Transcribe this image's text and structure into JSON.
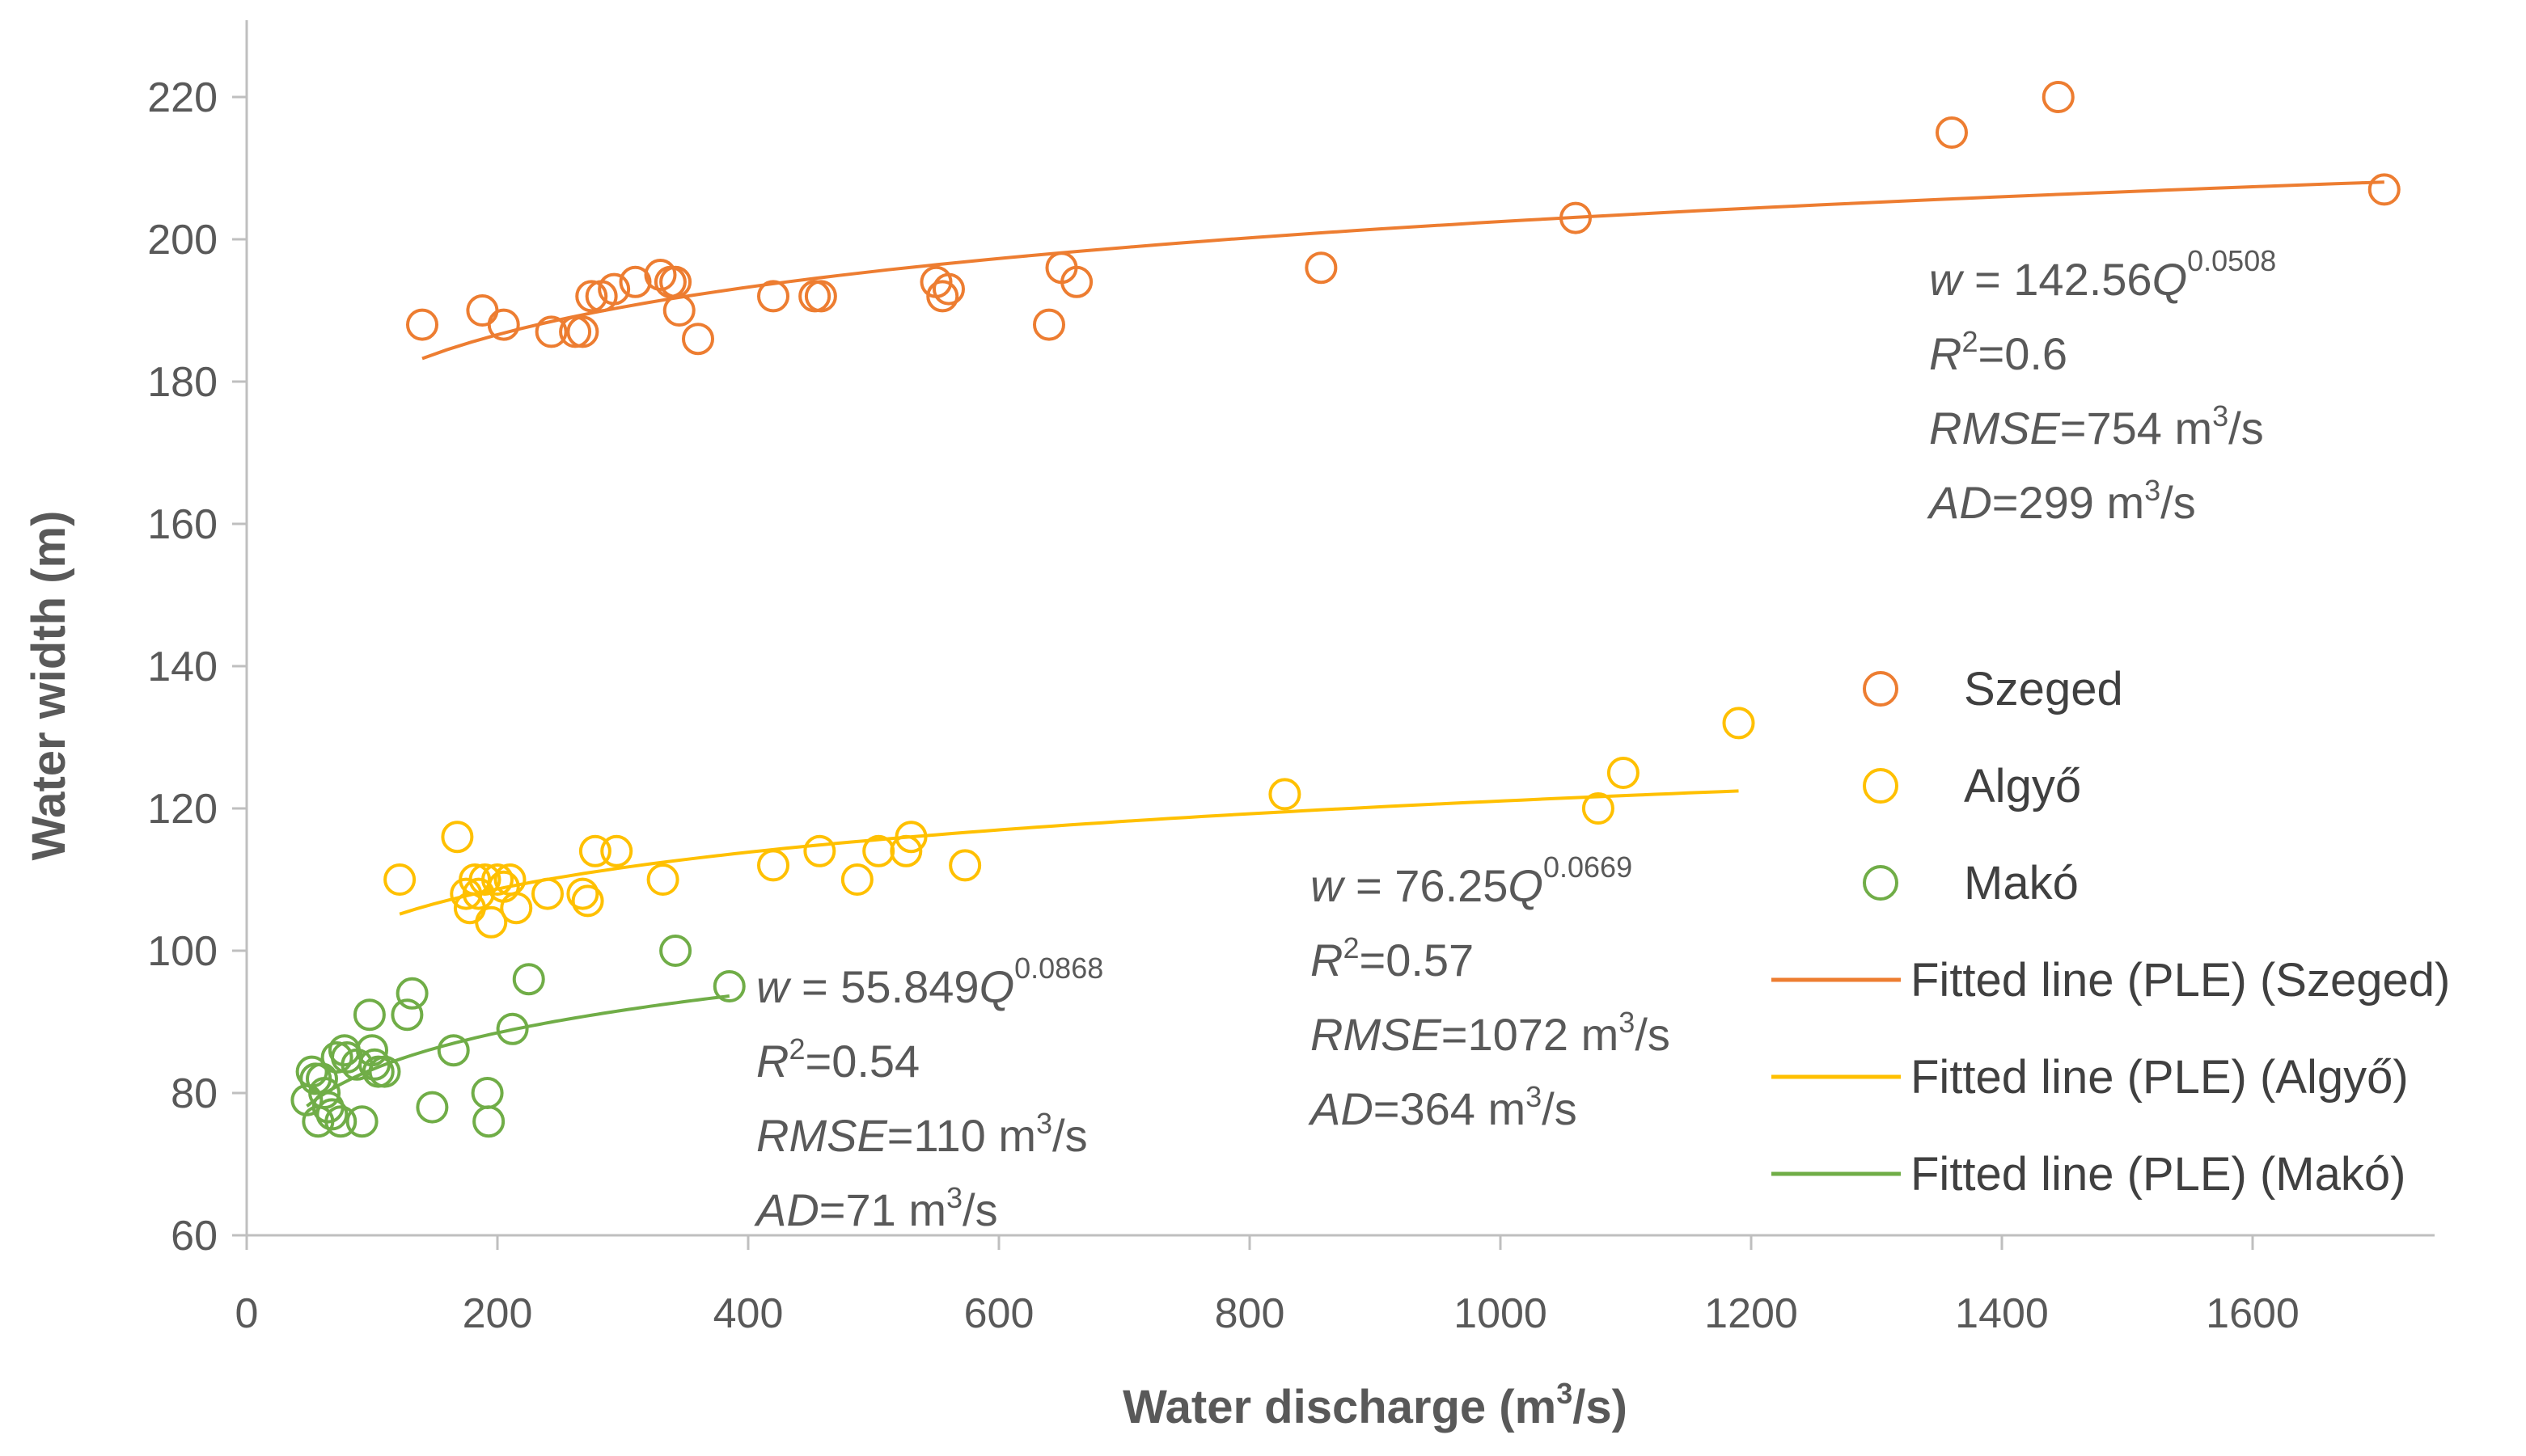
{
  "chart_data": {
    "type": "scatter",
    "xlabel": "Water discharge (m3/s)",
    "xlabel_main": "Water discharge (m",
    "xlabel_sup": "3",
    "xlabel_end": "/s)",
    "ylabel": "Water width (m)",
    "xlim": [
      0,
      1750
    ],
    "ylim": [
      60,
      225
    ],
    "x_ticks": [
      0,
      200,
      400,
      600,
      800,
      1000,
      1200,
      1400,
      1600
    ],
    "y_ticks": [
      60,
      80,
      100,
      120,
      140,
      160,
      180,
      200,
      220
    ],
    "grid": false,
    "legend_position": "right",
    "series": [
      {
        "name": "Szeged",
        "color": "#ED7D31",
        "marker": "circle-open",
        "points": [
          [
            140,
            188
          ],
          [
            188,
            190
          ],
          [
            205,
            188
          ],
          [
            243,
            187
          ],
          [
            262,
            187
          ],
          [
            268,
            187
          ],
          [
            275,
            192
          ],
          [
            283,
            192
          ],
          [
            293,
            193
          ],
          [
            310,
            194
          ],
          [
            330,
            195
          ],
          [
            338,
            194
          ],
          [
            342,
            194
          ],
          [
            345,
            190
          ],
          [
            360,
            186
          ],
          [
            420,
            192
          ],
          [
            453,
            192
          ],
          [
            458,
            192
          ],
          [
            550,
            194
          ],
          [
            555,
            192
          ],
          [
            560,
            193
          ],
          [
            640,
            188
          ],
          [
            650,
            196
          ],
          [
            662,
            194
          ],
          [
            857,
            196
          ],
          [
            1060,
            203
          ],
          [
            1360,
            215
          ],
          [
            1445,
            220
          ],
          [
            1705,
            207
          ]
        ],
        "fit": {
          "name": "Fitted line (PLE) (Szeged)",
          "a": 142.56,
          "b": 0.0508,
          "x_range": [
            140,
            1705
          ],
          "annotation": {
            "eq_lead": "w",
            "eq_mid": " = 142.56",
            "eq_Q": "Q",
            "exp": "0.0508",
            "r2_lead": "R",
            "r2_sup": "2",
            "r2_val": "=0.6",
            "rmse_lead": "RMSE",
            "rmse_val": "=754 m",
            "rmse_sup": "3",
            "rmse_end": "/s",
            "ad_lead": "AD",
            "ad_val": "=299 m",
            "ad_sup": "3",
            "ad_end": "/s"
          }
        }
      },
      {
        "name": "Algyő",
        "color": "#FFC000",
        "marker": "circle-open",
        "points": [
          [
            122,
            110
          ],
          [
            168,
            116
          ],
          [
            175,
            108
          ],
          [
            178,
            106
          ],
          [
            182,
            110
          ],
          [
            185,
            108
          ],
          [
            190,
            110
          ],
          [
            195,
            104
          ],
          [
            200,
            110
          ],
          [
            205,
            109
          ],
          [
            210,
            110
          ],
          [
            215,
            106
          ],
          [
            240,
            108
          ],
          [
            268,
            108
          ],
          [
            272,
            107
          ],
          [
            278,
            114
          ],
          [
            295,
            114
          ],
          [
            332,
            110
          ],
          [
            420,
            112
          ],
          [
            457,
            114
          ],
          [
            487,
            110
          ],
          [
            504,
            114
          ],
          [
            526,
            114
          ],
          [
            530,
            116
          ],
          [
            573,
            112
          ],
          [
            828,
            122
          ],
          [
            1078,
            120
          ],
          [
            1098,
            125
          ],
          [
            1190,
            132
          ]
        ],
        "fit": {
          "name": "Fitted line (PLE) (Algyő)",
          "a": 76.25,
          "b": 0.0669,
          "x_range": [
            122,
            1190
          ],
          "annotation": {
            "eq_lead": "w",
            "eq_mid": " = 76.25",
            "eq_Q": "Q",
            "exp": "0.0669",
            "r2_lead": "R",
            "r2_sup": "2",
            "r2_val": "=0.57",
            "rmse_lead": "RMSE",
            "rmse_val": "=1072 m",
            "rmse_sup": "3",
            "rmse_end": "/s",
            "ad_lead": "AD",
            "ad_val": "=364 m",
            "ad_sup": "3",
            "ad_end": "/s"
          }
        }
      },
      {
        "name": "Makó",
        "color": "#70AD47",
        "marker": "circle-open",
        "points": [
          [
            48,
            79
          ],
          [
            52,
            83
          ],
          [
            55,
            82
          ],
          [
            57,
            76
          ],
          [
            60,
            82
          ],
          [
            62,
            80
          ],
          [
            65,
            78
          ],
          [
            68,
            77
          ],
          [
            72,
            85
          ],
          [
            75,
            76
          ],
          [
            78,
            86
          ],
          [
            80,
            85
          ],
          [
            88,
            84
          ],
          [
            92,
            76
          ],
          [
            98,
            91
          ],
          [
            100,
            86
          ],
          [
            102,
            84
          ],
          [
            105,
            83
          ],
          [
            110,
            83
          ],
          [
            128,
            91
          ],
          [
            132,
            94
          ],
          [
            148,
            78
          ],
          [
            165,
            86
          ],
          [
            192,
            80
          ],
          [
            193,
            76
          ],
          [
            212,
            89
          ],
          [
            225,
            96
          ],
          [
            342,
            100
          ],
          [
            385,
            95
          ]
        ],
        "fit": {
          "name": "Fitted line (PLE) (Makó)",
          "a": 55.849,
          "b": 0.0868,
          "x_range": [
            48,
            385
          ],
          "annotation": {
            "eq_lead": "w",
            "eq_mid": " = 55.849",
            "eq_Q": "Q",
            "exp": "0.0868",
            "r2_lead": "R",
            "r2_sup": "2",
            "r2_val": "=0.54",
            "rmse_lead": "RMSE",
            "rmse_val": "=110 m",
            "rmse_sup": "3",
            "rmse_end": "/s",
            "ad_lead": "AD",
            "ad_val": "=71 m",
            "ad_sup": "3",
            "ad_end": "/s"
          }
        }
      }
    ]
  }
}
